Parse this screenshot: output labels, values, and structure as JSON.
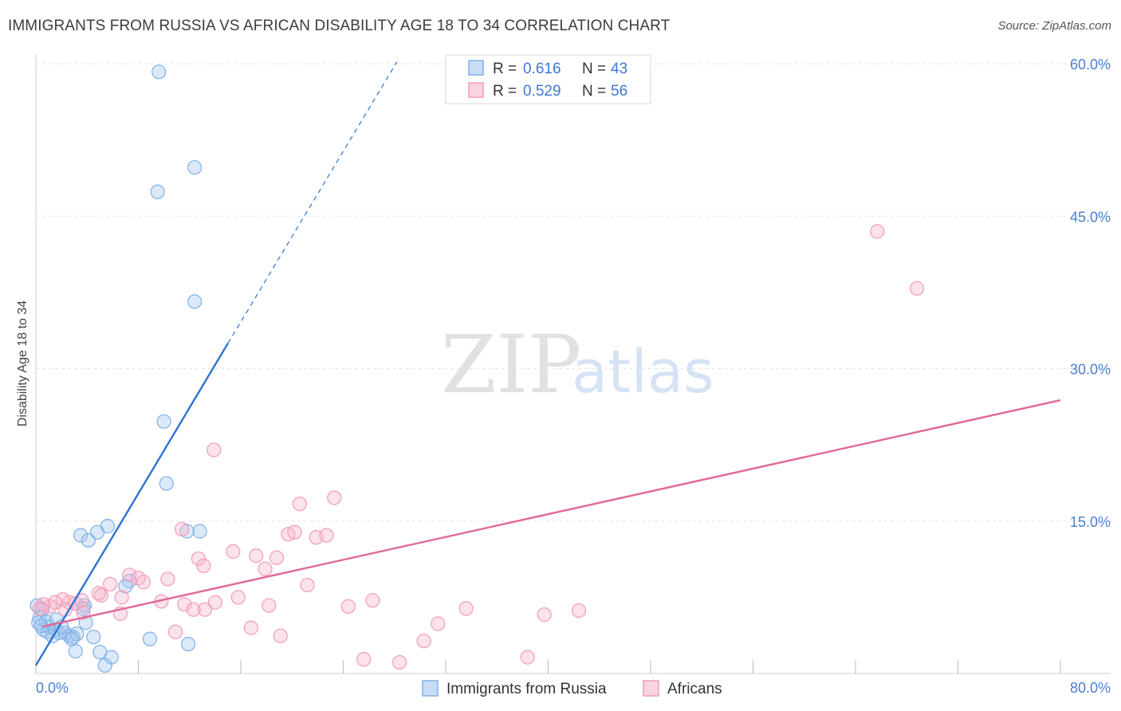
{
  "title": "IMMIGRANTS FROM RUSSIA VS AFRICAN DISABILITY AGE 18 TO 34 CORRELATION CHART",
  "source": "Source: ZipAtlas.com",
  "watermark": {
    "part1": "ZIP",
    "part2": "atlas"
  },
  "legend": {
    "rows": [
      {
        "r_label": "R =",
        "r_value": "0.616",
        "n_label": "N =",
        "n_value": "43",
        "color": "#7fb0e8"
      },
      {
        "r_label": "R =",
        "r_value": "0.529",
        "n_label": "N =",
        "n_value": "56",
        "color": "#f29bb7"
      }
    ]
  },
  "bottom_legend": [
    {
      "label": "Immigrants from Russia",
      "color": "#7fb0e8"
    },
    {
      "label": "Africans",
      "color": "#f29bb7"
    }
  ],
  "chart_data": {
    "type": "scatter",
    "title": "IMMIGRANTS FROM RUSSIA VS AFRICAN DISABILITY AGE 18 TO 34 CORRELATION CHART",
    "xlabel": "",
    "ylabel": "Disability Age 18 to 34",
    "xlim": [
      0,
      80
    ],
    "ylim": [
      0,
      60
    ],
    "x_tick_labels": [
      "0.0%",
      "80.0%"
    ],
    "y_ticks": [
      15,
      30,
      45,
      60
    ],
    "y_tick_labels": [
      "15.0%",
      "30.0%",
      "45.0%",
      "60.0%"
    ],
    "grid": true,
    "series": [
      {
        "name": "Immigrants from Russia",
        "color": "#7fb0e8",
        "line_color": "#2f73d0",
        "trend": {
          "x": [
            0,
            15
          ],
          "y": [
            0.8,
            32.5
          ],
          "dashed_to": [
            28.2,
            60.2
          ]
        },
        "points": [
          [
            9.6,
            59.2
          ],
          [
            12.4,
            49.8
          ],
          [
            9.5,
            47.4
          ],
          [
            12.4,
            36.6
          ],
          [
            10.0,
            24.8
          ],
          [
            10.2,
            18.7
          ],
          [
            5.6,
            14.5
          ],
          [
            4.8,
            13.9
          ],
          [
            3.5,
            13.6
          ],
          [
            4.1,
            13.1
          ],
          [
            12.8,
            14.0
          ],
          [
            11.8,
            14.0
          ],
          [
            7.3,
            9.1
          ],
          [
            7.0,
            8.6
          ],
          [
            3.8,
            6.7
          ],
          [
            3.7,
            6.4
          ],
          [
            3.9,
            5.0
          ],
          [
            4.5,
            3.6
          ],
          [
            5.0,
            2.1
          ],
          [
            5.9,
            1.6
          ],
          [
            5.4,
            0.8
          ],
          [
            8.9,
            3.4
          ],
          [
            11.9,
            2.9
          ],
          [
            0.1,
            6.7
          ],
          [
            0.5,
            6.3
          ],
          [
            0.3,
            5.5
          ],
          [
            0.8,
            5.1
          ],
          [
            1.0,
            4.6
          ],
          [
            0.6,
            4.3
          ],
          [
            0.9,
            4.1
          ],
          [
            1.5,
            4.3
          ],
          [
            1.8,
            4.0
          ],
          [
            2.3,
            4.0
          ],
          [
            2.6,
            3.7
          ],
          [
            2.0,
            4.6
          ],
          [
            1.3,
            3.7
          ],
          [
            2.9,
            3.6
          ],
          [
            3.2,
            3.9
          ],
          [
            2.8,
            3.4
          ],
          [
            0.2,
            5.0
          ],
          [
            0.4,
            4.7
          ],
          [
            1.6,
            5.3
          ],
          [
            3.1,
            2.2
          ]
        ]
      },
      {
        "name": "Africans",
        "color": "#f29bb7",
        "line_color": "#e0679a",
        "trend": {
          "x": [
            0.5,
            80
          ],
          "y": [
            4.6,
            26.9
          ]
        },
        "points": [
          [
            65.7,
            43.5
          ],
          [
            68.8,
            37.9
          ],
          [
            13.9,
            22.0
          ],
          [
            23.3,
            17.3
          ],
          [
            20.6,
            16.7
          ],
          [
            19.7,
            13.7
          ],
          [
            20.2,
            13.9
          ],
          [
            21.9,
            13.4
          ],
          [
            22.7,
            13.6
          ],
          [
            11.4,
            14.2
          ],
          [
            15.4,
            12.0
          ],
          [
            17.2,
            11.6
          ],
          [
            18.8,
            11.4
          ],
          [
            12.7,
            11.3
          ],
          [
            13.1,
            10.6
          ],
          [
            17.9,
            10.3
          ],
          [
            7.3,
            9.7
          ],
          [
            8.0,
            9.4
          ],
          [
            8.4,
            9.0
          ],
          [
            10.3,
            9.3
          ],
          [
            5.8,
            8.8
          ],
          [
            21.2,
            8.7
          ],
          [
            5.1,
            7.7
          ],
          [
            4.9,
            7.9
          ],
          [
            6.7,
            7.5
          ],
          [
            9.8,
            7.1
          ],
          [
            11.6,
            6.8
          ],
          [
            14.0,
            7.0
          ],
          [
            15.8,
            7.5
          ],
          [
            18.2,
            6.7
          ],
          [
            13.2,
            6.3
          ],
          [
            12.3,
            6.3
          ],
          [
            24.4,
            6.6
          ],
          [
            26.3,
            7.2
          ],
          [
            33.6,
            6.4
          ],
          [
            31.4,
            4.9
          ],
          [
            16.8,
            4.5
          ],
          [
            19.1,
            3.7
          ],
          [
            10.9,
            4.1
          ],
          [
            3.6,
            7.2
          ],
          [
            3.1,
            6.9
          ],
          [
            2.6,
            7.0
          ],
          [
            2.1,
            7.3
          ],
          [
            1.5,
            7.0
          ],
          [
            1.1,
            6.6
          ],
          [
            0.6,
            6.8
          ],
          [
            0.3,
            6.4
          ],
          [
            2.3,
            6.3
          ],
          [
            3.7,
            6.0
          ],
          [
            6.6,
            5.9
          ],
          [
            39.7,
            5.8
          ],
          [
            42.4,
            6.2
          ],
          [
            30.3,
            3.2
          ],
          [
            28.4,
            1.1
          ],
          [
            25.6,
            1.4
          ],
          [
            38.4,
            1.6
          ]
        ]
      }
    ]
  }
}
